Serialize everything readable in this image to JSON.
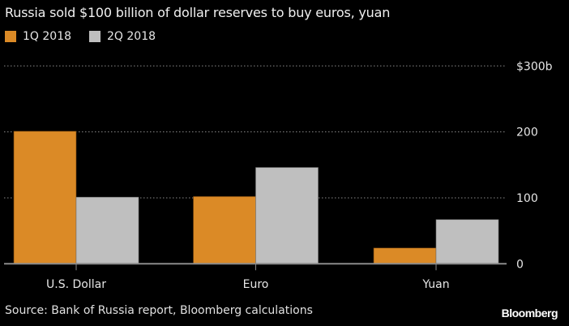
{
  "chart_data": {
    "type": "bar",
    "title": "Russia sold $100 billion of dollar reserves to buy euros, yuan",
    "categories": [
      "U.S. Dollar",
      "Euro",
      "Yuan"
    ],
    "series": [
      {
        "name": "1Q 2018",
        "color": "#db8a26",
        "values": [
          201,
          102,
          24
        ]
      },
      {
        "name": "2Q 2018",
        "color": "#bfbfbf",
        "values": [
          101,
          146,
          67
        ]
      }
    ],
    "yticks": [
      0,
      100,
      200,
      300
    ],
    "ytick_labels": [
      "0",
      "100",
      "200",
      "$300b"
    ],
    "ylim": [
      0,
      300
    ],
    "xlabel": "",
    "ylabel": "",
    "grid": true,
    "legend_position": "top-left",
    "source": "Source: Bank of Russia report, Bloomberg calculations",
    "brand": "Bloomberg"
  }
}
